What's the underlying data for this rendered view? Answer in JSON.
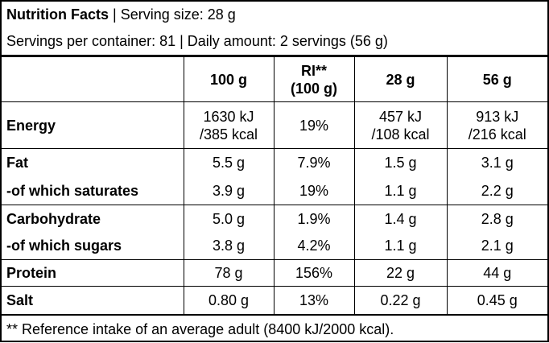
{
  "header": {
    "title": "Nutrition Facts",
    "serving_size": "| Serving size: 28 g",
    "line2": "Servings per container: 81 | Daily amount: 2 servings (56 g)"
  },
  "table": {
    "columns": [
      "100 g",
      "RI**\n(100 g)",
      "28 g",
      "56 g"
    ],
    "groups": [
      {
        "rows": [
          [
            "Energy",
            "1630 kJ\n/385 kcal",
            "19%",
            "457 kJ\n/108 kcal",
            "913 kJ\n/216 kcal"
          ]
        ]
      },
      {
        "rows": [
          [
            "Fat",
            "5.5 g",
            "7.9%",
            "1.5 g",
            "3.1 g"
          ],
          [
            "-of which saturates",
            "3.9 g",
            "19%",
            "1.1 g",
            "2.2 g"
          ]
        ]
      },
      {
        "rows": [
          [
            "Carbohydrate",
            "5.0 g",
            "1.9%",
            "1.4 g",
            "2.8 g"
          ],
          [
            "-of which sugars",
            "3.8 g",
            "4.2%",
            "1.1 g",
            "2.1 g"
          ]
        ]
      },
      {
        "rows": [
          [
            "Protein",
            "78 g",
            "156%",
            "22 g",
            "44 g"
          ]
        ]
      },
      {
        "rows": [
          [
            "Salt",
            "0.80 g",
            "13%",
            "0.22 g",
            "0.45 g"
          ]
        ]
      }
    ]
  },
  "footer": "** Reference intake of an average adult (8400 kJ/2000 kcal)."
}
